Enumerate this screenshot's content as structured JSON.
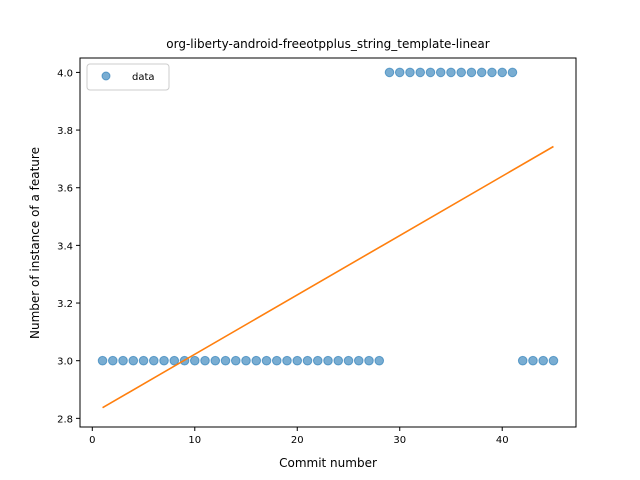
{
  "chart_data": {
    "type": "scatter",
    "title": "org-liberty-android-freeotpplus_string_template-linear",
    "xlabel": "Commit number",
    "ylabel": "Number of instance of a feature",
    "xlim": [
      -1.2,
      47.2
    ],
    "ylim": [
      2.77,
      4.05
    ],
    "xticks": [
      0,
      10,
      20,
      30,
      40
    ],
    "xtick_labels": [
      "0",
      "10",
      "20",
      "30",
      "40"
    ],
    "yticks": [
      2.8,
      3.0,
      3.2,
      3.4,
      3.6,
      3.8,
      4.0
    ],
    "ytick_labels": [
      "2.8",
      "3.0",
      "3.2",
      "3.4",
      "3.6",
      "3.8",
      "4.0"
    ],
    "legend": {
      "position": "upper-left",
      "entries": [
        "data"
      ]
    },
    "grid": false,
    "series": [
      {
        "name": "data",
        "kind": "scatter",
        "color": "#1f77b4",
        "x": [
          1,
          2,
          3,
          4,
          5,
          6,
          7,
          8,
          9,
          10,
          11,
          12,
          13,
          14,
          15,
          16,
          17,
          18,
          19,
          20,
          21,
          22,
          23,
          24,
          25,
          26,
          27,
          28,
          29,
          30,
          31,
          32,
          33,
          34,
          35,
          36,
          37,
          38,
          39,
          40,
          41,
          42,
          43,
          44,
          45
        ],
        "y": [
          3,
          3,
          3,
          3,
          3,
          3,
          3,
          3,
          3,
          3,
          3,
          3,
          3,
          3,
          3,
          3,
          3,
          3,
          3,
          3,
          3,
          3,
          3,
          3,
          3,
          3,
          3,
          3,
          4,
          4,
          4,
          4,
          4,
          4,
          4,
          4,
          4,
          4,
          4,
          4,
          4,
          3,
          3,
          3,
          3
        ]
      },
      {
        "kind": "line",
        "color": "#ff7f0e",
        "x": [
          1,
          45
        ],
        "y": [
          2.837,
          3.743
        ]
      }
    ]
  }
}
